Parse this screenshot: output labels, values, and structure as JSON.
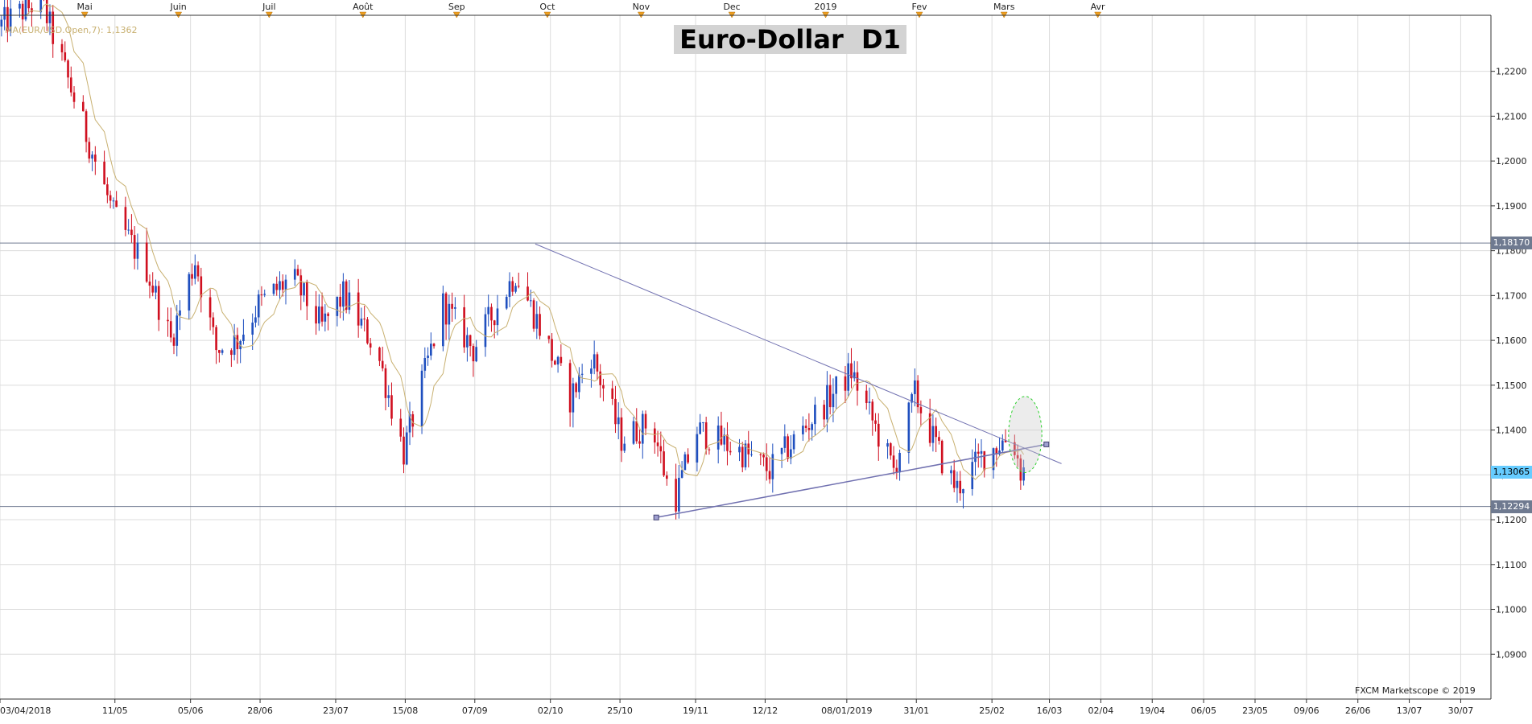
{
  "title": "Euro-Dollar  D1",
  "ma_label": "MA(EUR/USD.Open,7): 1,1362",
  "credit": "FXCM Marketscope © 2019",
  "colors": {
    "up": "#1f4fbf",
    "down": "#d01020",
    "ma": "#c8b070",
    "trend": "#7070b0",
    "grid": "#dcdcdc",
    "level": "#6f7a90",
    "highlight": "#2bd02b",
    "current_badge": "#66ccff",
    "level_badge": "#6f7a90"
  },
  "month_markers": [
    {
      "label": "Mai",
      "date": "2018-05-01"
    },
    {
      "label": "Juin",
      "date": "2018-06-01"
    },
    {
      "label": "Juil",
      "date": "2018-07-01"
    },
    {
      "label": "Août",
      "date": "2018-08-01"
    },
    {
      "label": "Sep",
      "date": "2018-09-01"
    },
    {
      "label": "Oct",
      "date": "2018-10-01"
    },
    {
      "label": "Nov",
      "date": "2018-11-01"
    },
    {
      "label": "Dec",
      "date": "2018-12-01"
    },
    {
      "label": "2019",
      "date": "2019-01-01"
    },
    {
      "label": "Fev",
      "date": "2019-02-01"
    },
    {
      "label": "Mars",
      "date": "2019-03-01"
    },
    {
      "label": "Avr",
      "date": "2019-04-01"
    }
  ],
  "badges": {
    "resistance": "1,18170",
    "current": "1,13065",
    "support": "1,12294"
  },
  "chart_data": {
    "type": "candlestick",
    "title": "Euro-Dollar  D1",
    "ylim": [
      1.08,
      1.2325
    ],
    "xlim": [
      "2018-04-03",
      "2019-08-09"
    ],
    "y_ticks": [
      "1,0900",
      "1,1000",
      "1,1100",
      "1,1200",
      "1,1300",
      "1,1400",
      "1,1500",
      "1,1600",
      "1,1700",
      "1,1800",
      "1,1900",
      "1,2000",
      "1,2100",
      "1,2200"
    ],
    "y_tick_values": [
      1.09,
      1.1,
      1.11,
      1.12,
      1.13,
      1.14,
      1.15,
      1.16,
      1.17,
      1.18,
      1.19,
      1.2,
      1.21,
      1.22
    ],
    "x_ticks": [
      "03/04/2018",
      "11/05",
      "05/06",
      "28/06",
      "23/07",
      "15/08",
      "07/09",
      "02/10",
      "25/10",
      "19/11",
      "12/12",
      "08/01/2019",
      "31/01",
      "25/02",
      "16/03",
      "02/04",
      "19/04",
      "06/05",
      "23/05",
      "09/06",
      "26/06",
      "13/07",
      "30/07"
    ],
    "x_tick_dates": [
      "2018-04-03",
      "2018-05-11",
      "2018-06-05",
      "2018-06-28",
      "2018-07-23",
      "2018-08-15",
      "2018-09-07",
      "2018-10-02",
      "2018-10-25",
      "2018-11-19",
      "2018-12-12",
      "2019-01-08",
      "2019-01-31",
      "2019-02-25",
      "2019-03-16",
      "2019-04-02",
      "2019-04-19",
      "2019-05-06",
      "2019-05-23",
      "2019-06-09",
      "2019-06-26",
      "2019-07-13",
      "2019-07-30"
    ],
    "anchors": [
      {
        "date": "2018-04-03",
        "price": 1.23
      },
      {
        "date": "2018-04-17",
        "price": 1.236
      },
      {
        "date": "2018-05-01",
        "price": 1.208
      },
      {
        "date": "2018-05-11",
        "price": 1.188
      },
      {
        "date": "2018-05-22",
        "price": 1.176
      },
      {
        "date": "2018-05-30",
        "price": 1.16
      },
      {
        "date": "2018-06-07",
        "price": 1.178
      },
      {
        "date": "2018-06-14",
        "price": 1.158
      },
      {
        "date": "2018-06-21",
        "price": 1.16
      },
      {
        "date": "2018-06-28",
        "price": 1.168
      },
      {
        "date": "2018-07-09",
        "price": 1.174
      },
      {
        "date": "2018-07-19",
        "price": 1.163
      },
      {
        "date": "2018-07-26",
        "price": 1.17
      },
      {
        "date": "2018-08-06",
        "price": 1.158
      },
      {
        "date": "2018-08-15",
        "price": 1.135
      },
      {
        "date": "2018-08-28",
        "price": 1.168
      },
      {
        "date": "2018-09-07",
        "price": 1.158
      },
      {
        "date": "2018-09-21",
        "price": 1.175
      },
      {
        "date": "2018-10-01",
        "price": 1.16
      },
      {
        "date": "2018-10-09",
        "price": 1.147
      },
      {
        "date": "2018-10-16",
        "price": 1.157
      },
      {
        "date": "2018-10-26",
        "price": 1.138
      },
      {
        "date": "2018-11-05",
        "price": 1.142
      },
      {
        "date": "2018-11-12",
        "price": 1.123
      },
      {
        "date": "2018-11-20",
        "price": 1.14
      },
      {
        "date": "2018-12-05",
        "price": 1.135
      },
      {
        "date": "2018-12-14",
        "price": 1.131
      },
      {
        "date": "2018-12-31",
        "price": 1.145
      },
      {
        "date": "2019-01-10",
        "price": 1.153
      },
      {
        "date": "2019-01-24",
        "price": 1.131
      },
      {
        "date": "2019-01-31",
        "price": 1.148
      },
      {
        "date": "2019-02-11",
        "price": 1.13
      },
      {
        "date": "2019-02-14",
        "price": 1.127
      },
      {
        "date": "2019-02-22",
        "price": 1.134
      },
      {
        "date": "2019-03-04",
        "price": 1.139
      },
      {
        "date": "2019-03-07",
        "price": 1.131
      }
    ],
    "moving_average": {
      "name": "MA(EUR/USD.Open,7)",
      "period": 7,
      "last": 1.1362
    },
    "horizontal_levels": [
      1.1817,
      1.12294
    ],
    "current_price": 1.13065,
    "trendlines": [
      {
        "from": {
          "date": "2018-09-27",
          "price": 1.1815
        },
        "to": {
          "date": "2019-03-20",
          "price": 1.1325
        }
      },
      {
        "from": {
          "date": "2018-11-06",
          "price": 1.1205
        },
        "to": {
          "date": "2019-03-15",
          "price": 1.1368
        }
      }
    ],
    "highlight_ellipse": {
      "center_date": "2019-03-08",
      "center_price": 1.139,
      "radius_days": 5.5,
      "radius_price": 0.0085
    },
    "grid": true
  }
}
